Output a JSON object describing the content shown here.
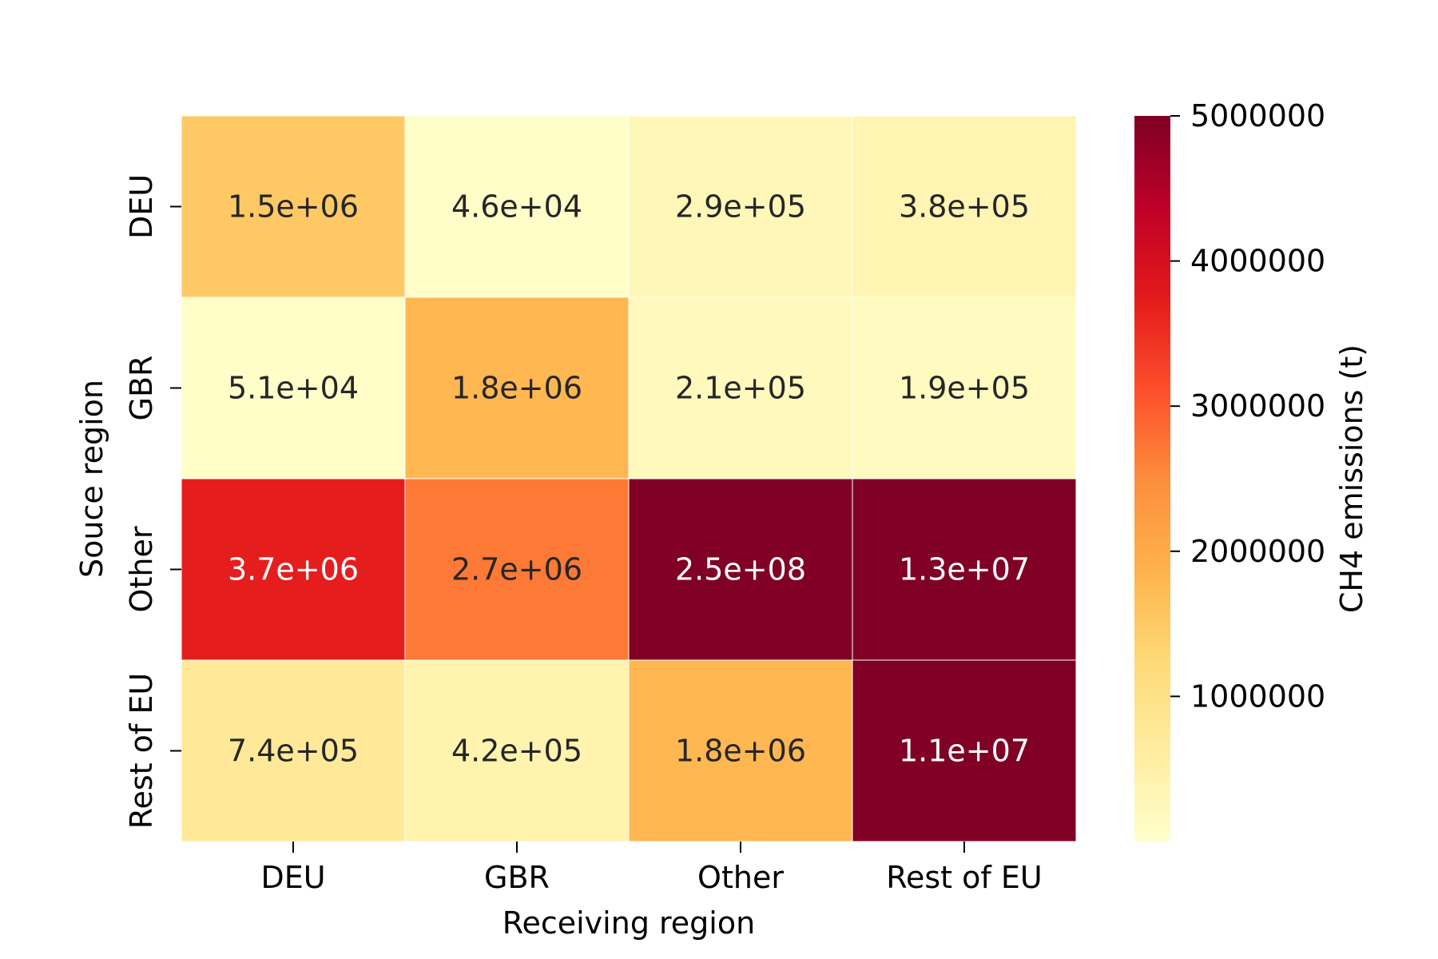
{
  "chart_data": {
    "type": "heatmap",
    "title": "",
    "xlabel": "Receiving region",
    "ylabel": "Souce region",
    "x_categories": [
      "DEU",
      "GBR",
      "Other",
      "Rest of EU"
    ],
    "y_categories": [
      "DEU",
      "GBR",
      "Other",
      "Rest of EU"
    ],
    "values": [
      [
        1500000,
        46000,
        290000,
        380000
      ],
      [
        51000,
        1800000,
        210000,
        190000
      ],
      [
        3700000,
        2700000,
        250000000,
        13000000
      ],
      [
        740000,
        420000,
        1800000,
        11000000
      ]
    ],
    "labels": [
      [
        "1.5e+06",
        "4.6e+04",
        "2.9e+05",
        "3.8e+05"
      ],
      [
        "5.1e+04",
        "1.8e+06",
        "2.1e+05",
        "1.9e+05"
      ],
      [
        "3.7e+06",
        "2.7e+06",
        "2.5e+08",
        "1.3e+07"
      ],
      [
        "7.4e+05",
        "4.2e+05",
        "1.8e+06",
        "1.1e+07"
      ]
    ],
    "colorbar": {
      "label": "CH4 emissions (t)",
      "vmin": 0,
      "vmax": 5000000,
      "ticks": [
        1000000,
        2000000,
        3000000,
        4000000,
        5000000
      ],
      "tick_labels": [
        "1000000",
        "2000000",
        "3000000",
        "4000000",
        "5000000"
      ],
      "colormap": "YlOrRd",
      "stops": [
        "#ffffcc",
        "#ffeda0",
        "#fed976",
        "#feb24c",
        "#fd8d3c",
        "#fc4e2a",
        "#e31a1c",
        "#bd0026",
        "#800026"
      ]
    },
    "grid": false,
    "legend": "colorbar-right"
  }
}
